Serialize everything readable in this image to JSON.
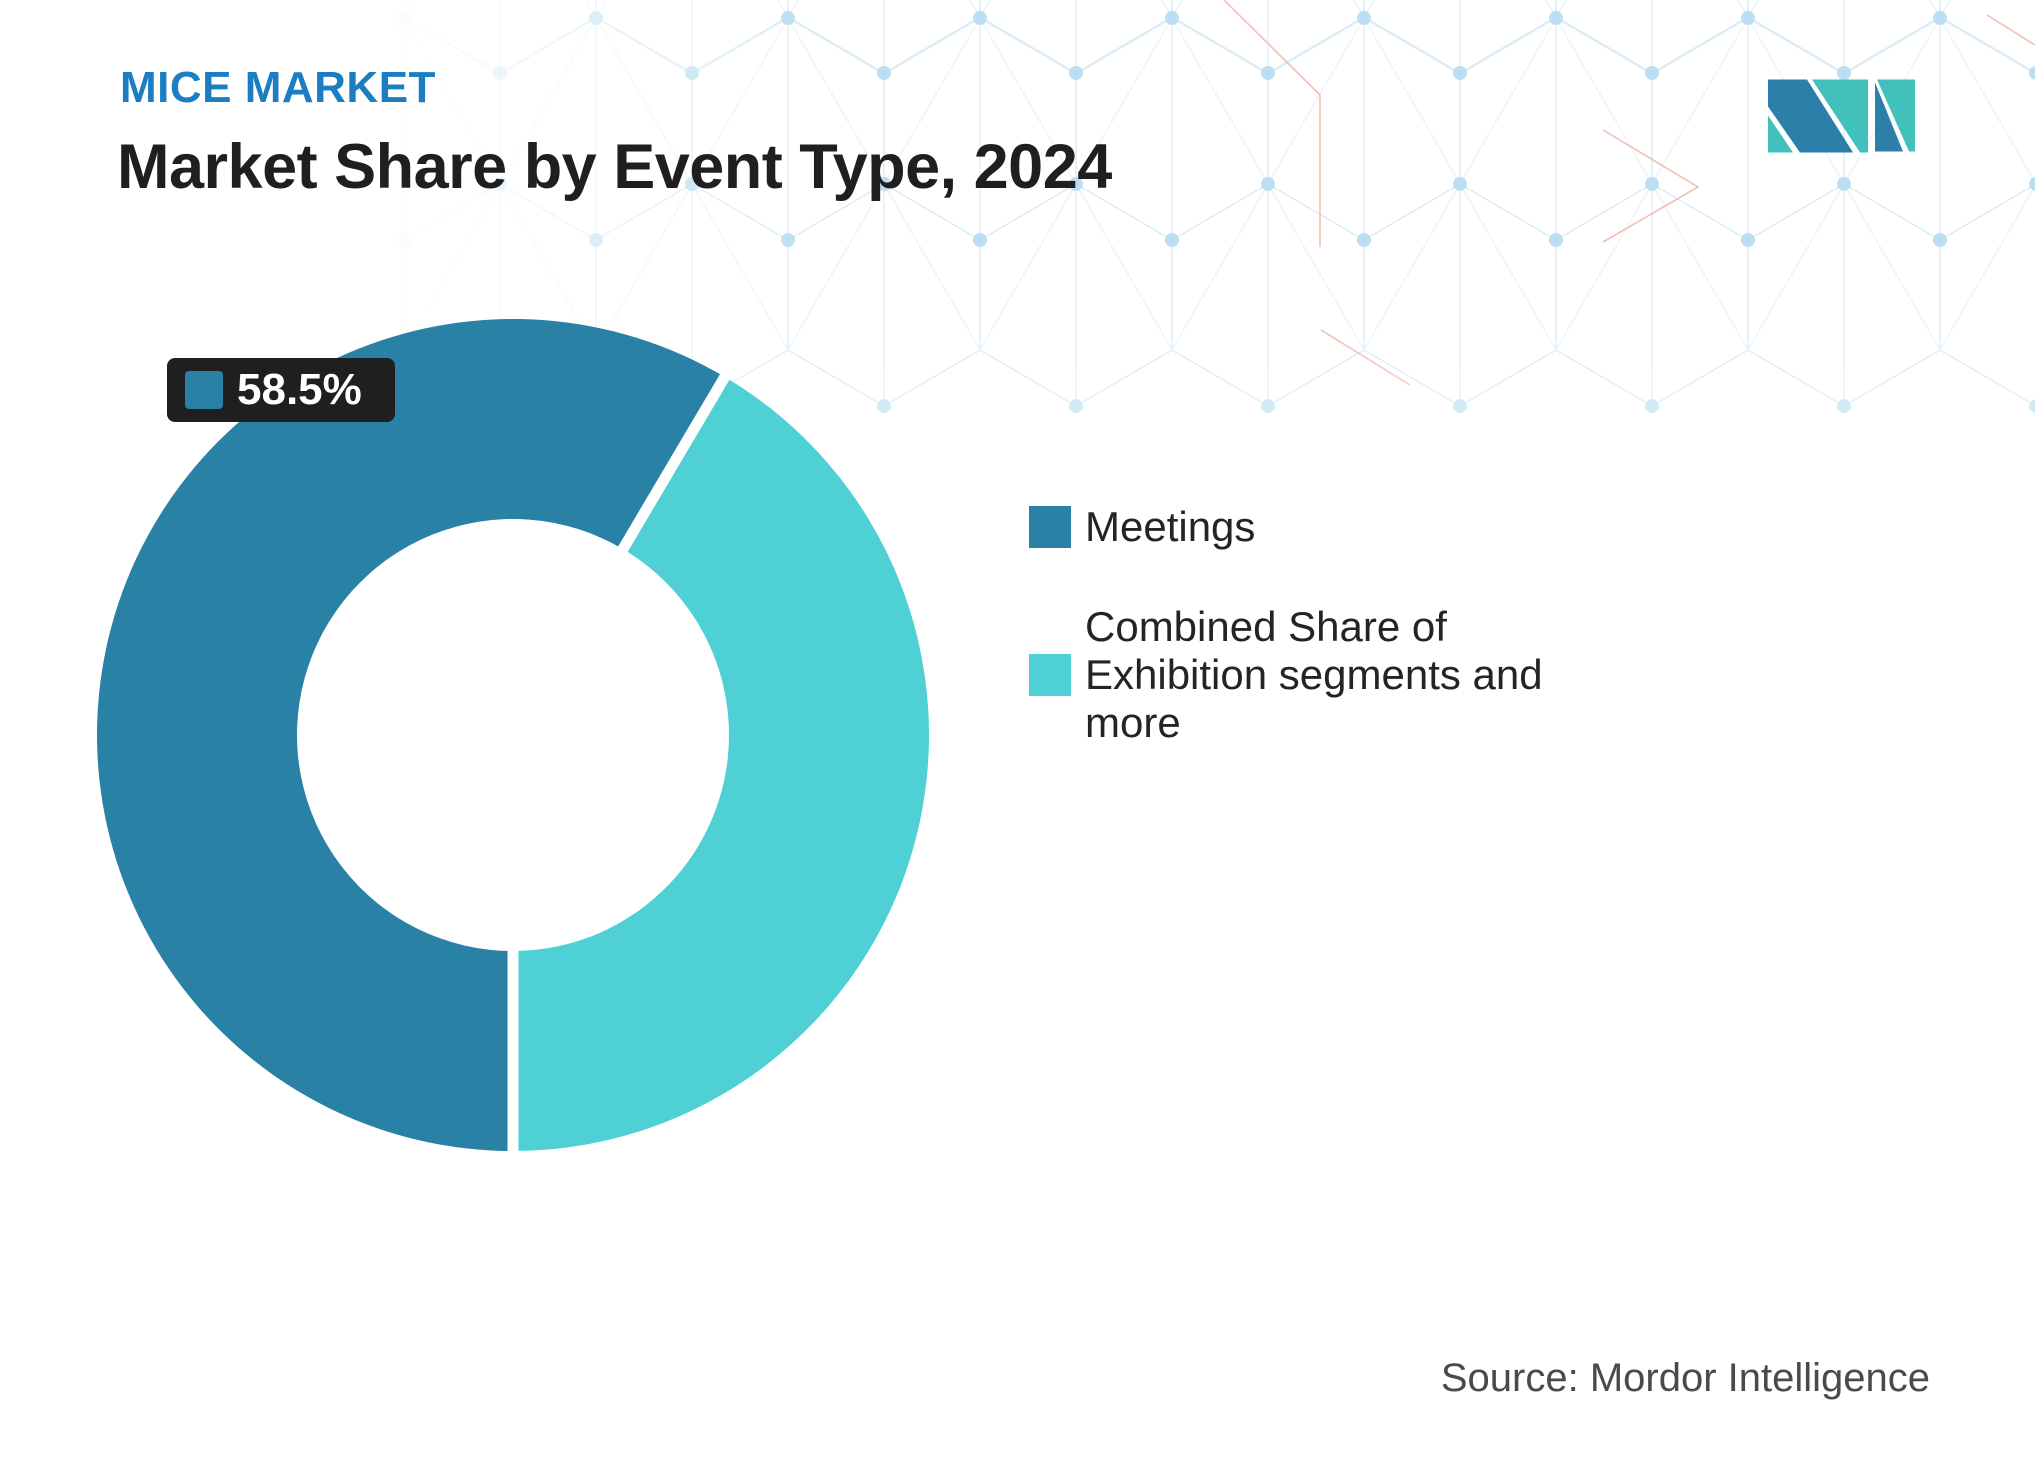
{
  "header": {
    "kicker": "MICE MARKET",
    "title": "Market Share by Event Type, 2024"
  },
  "brand": {
    "logo": "mordor-intelligence-logo"
  },
  "chart_data": {
    "type": "pie",
    "donut": true,
    "title": "Market Share by Event Type, 2024",
    "inner_radius_pct": 52,
    "start_angle_deg": 180,
    "direction": "clockwise",
    "legend_position": "right",
    "slices": [
      {
        "label": "Meetings",
        "value": 58.5,
        "color": "#2981A6"
      },
      {
        "label": "Combined Share of Exhibition segments and more",
        "value": 41.5,
        "color": "#4FD0D4"
      }
    ],
    "data_labels": [
      {
        "series": "Meetings",
        "text": "58.5%"
      }
    ]
  },
  "source": {
    "text": "Source: Mordor Intelligence"
  },
  "colors": {
    "kicker_blue": "#1B7EC2",
    "title_text": "#1F1F1F",
    "legend_text": "#242424",
    "source_text": "#4A4A4A",
    "label_box_bg": "#1F1F1F",
    "label_box_text": "#FFFFFF",
    "gap_stroke": "#FFFFFF",
    "logo_blue": "#2B7FA8",
    "logo_teal": "#41C0BC",
    "pattern_line": "#D8ECF6",
    "pattern_dot": "#B5DDEF",
    "pattern_accent": "#F2B7AB"
  }
}
